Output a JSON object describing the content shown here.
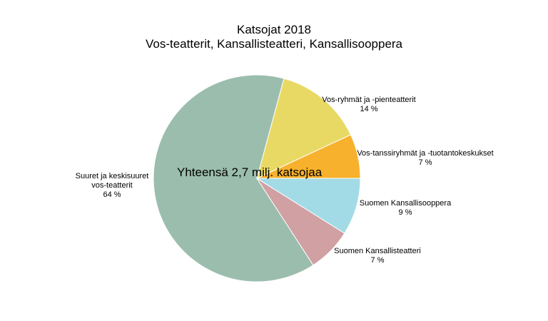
{
  "chart_data": {
    "type": "pie",
    "title": "Katsojat 2018",
    "subtitle": "Vos-teatterit, Kansallisteatteri, Kansallisooppera",
    "annotation": "Yhteensä 2,7 milj. katsojaa",
    "categories": [
      "Vos-tanssiryhmät ja -tuotantokeskukset",
      "Vos-ryhmät ja -pienteatterit",
      "Suuret ja keskisuuret vos-teatterit",
      "Suomen Kansallisteatteri",
      "Suomen Kansallisooppera"
    ],
    "values": [
      7,
      14,
      64,
      7,
      9
    ],
    "value_labels": [
      "7 %",
      "14 %",
      "64 %",
      "7 %",
      "9 %"
    ],
    "colors": [
      "#f8b12d",
      "#e8d964",
      "#9bbdad",
      "#d0a0a3",
      "#a2dbe6"
    ]
  }
}
